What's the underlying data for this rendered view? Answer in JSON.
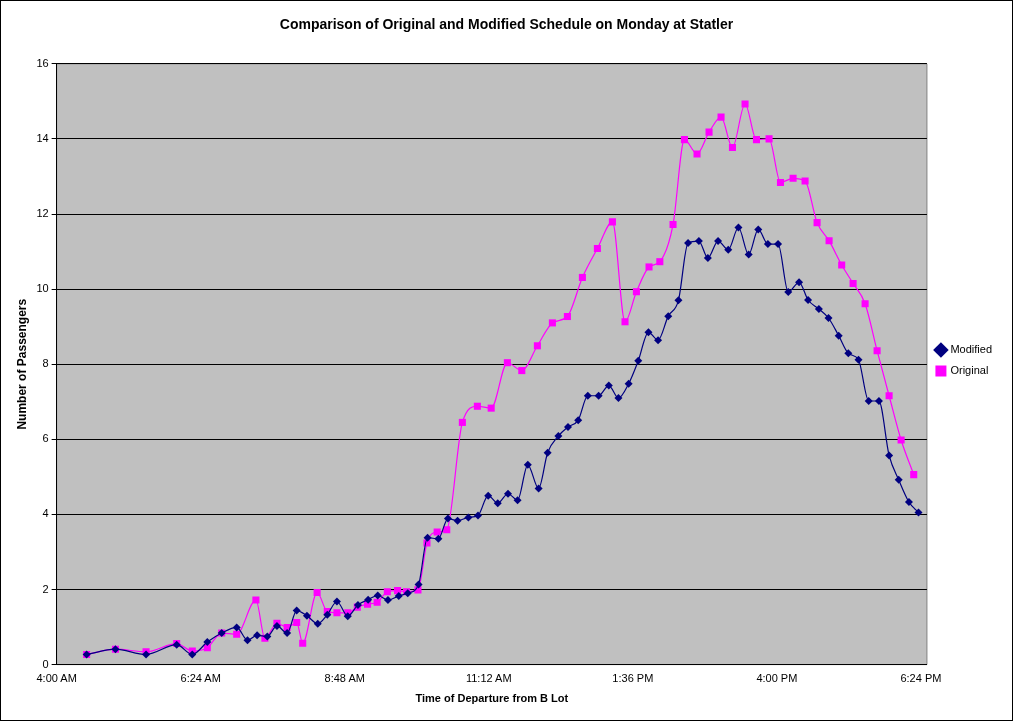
{
  "chart_data": {
    "type": "line",
    "title": "Comparison of Original and Modified Schedule on Monday at Statler",
    "xlabel": "Time of Departure from B Lot",
    "ylabel": "Number of Passengers",
    "xlim": [
      4,
      18.5
    ],
    "xticks": [
      {
        "value": 4,
        "label": "4:00 AM"
      },
      {
        "value": 6.4,
        "label": "6:24 AM"
      },
      {
        "value": 8.8,
        "label": "8:48 AM"
      },
      {
        "value": 11.2,
        "label": "11:12 AM"
      },
      {
        "value": 13.6,
        "label": "1:36 PM"
      },
      {
        "value": 16,
        "label": "4:00 PM"
      },
      {
        "value": 18.4,
        "label": "6:24 PM"
      }
    ],
    "ylim": [
      0,
      16
    ],
    "yticks": [
      0,
      2,
      4,
      6,
      8,
      10,
      12,
      14,
      16
    ],
    "grid": "y",
    "legend": "right",
    "series": [
      {
        "name": "Modified",
        "color": "#000080",
        "marker": "diamond",
        "x": [
          4.5,
          4.98,
          5.49,
          6.0,
          6.26,
          6.51,
          6.75,
          7.0,
          7.18,
          7.34,
          7.51,
          7.67,
          7.84,
          8.0,
          8.17,
          8.35,
          8.51,
          8.67,
          8.85,
          9.02,
          9.19,
          9.35,
          9.52,
          9.7,
          9.85,
          10.03,
          10.18,
          10.36,
          10.52,
          10.68,
          10.86,
          11.02,
          11.19,
          11.35,
          11.52,
          11.68,
          11.85,
          12.03,
          12.18,
          12.36,
          12.52,
          12.69,
          12.85,
          13.03,
          13.2,
          13.36,
          13.53,
          13.69,
          13.86,
          14.02,
          14.19,
          14.36,
          14.52,
          14.7,
          14.85,
          15.02,
          15.19,
          15.36,
          15.53,
          15.69,
          15.85,
          16.02,
          16.19,
          16.37,
          16.52,
          16.7,
          16.86,
          17.03,
          17.19,
          17.36,
          17.53,
          17.7,
          17.87,
          18.03,
          18.2,
          18.36
        ],
        "values": [
          0.27,
          0.41,
          0.27,
          0.53,
          0.27,
          0.6,
          0.84,
          0.99,
          0.65,
          0.78,
          0.75,
          1.03,
          0.84,
          1.44,
          1.3,
          1.09,
          1.33,
          1.68,
          1.29,
          1.59,
          1.73,
          1.84,
          1.72,
          1.83,
          1.9,
          2.13,
          3.38,
          3.35,
          3.89,
          3.83,
          3.92,
          3.97,
          4.5,
          4.3,
          4.55,
          4.38,
          5.32,
          4.69,
          5.64,
          6.09,
          6.33,
          6.51,
          7.16,
          7.16,
          7.43,
          7.1,
          7.48,
          8.09,
          8.85,
          8.64,
          9.28,
          9.7,
          11.23,
          11.28,
          10.83,
          11.28,
          11.05,
          11.64,
          10.92,
          11.59,
          11.2,
          11.2,
          9.92,
          10.18,
          9.71,
          9.47,
          9.23,
          8.76,
          8.29,
          8.12,
          7.02,
          7.02,
          5.57,
          4.92,
          4.33,
          4.05
        ]
      },
      {
        "name": "Original",
        "color": "#ff00ff",
        "marker": "square",
        "x": [
          4.5,
          4.98,
          5.49,
          6.0,
          6.26,
          6.51,
          6.75,
          7.0,
          7.32,
          7.47,
          7.67,
          7.84,
          8.0,
          8.1,
          8.34,
          8.51,
          8.67,
          8.85,
          9.01,
          9.18,
          9.34,
          9.51,
          9.68,
          9.83,
          10.02,
          10.17,
          10.34,
          10.5,
          10.76,
          11.01,
          11.24,
          11.51,
          11.75,
          12.01,
          12.26,
          12.51,
          12.76,
          13.01,
          13.26,
          13.47,
          13.66,
          13.87,
          14.05,
          14.27,
          14.46,
          14.67,
          14.87,
          15.07,
          15.26,
          15.47,
          15.66,
          15.87,
          16.06,
          16.27,
          16.47,
          16.67,
          16.87,
          17.08,
          17.27,
          17.47,
          17.67,
          17.87,
          18.07,
          18.28
        ],
        "values": [
          0.27,
          0.41,
          0.34,
          0.56,
          0.36,
          0.45,
          0.84,
          0.81,
          1.72,
          0.7,
          1.1,
          0.99,
          1.12,
          0.57,
          1.92,
          1.41,
          1.38,
          1.38,
          1.53,
          1.61,
          1.66,
          1.94,
          1.97,
          1.94,
          1.99,
          3.24,
          3.53,
          3.59,
          6.45,
          6.88,
          6.83,
          8.04,
          7.83,
          8.49,
          9.1,
          9.27,
          10.31,
          11.08,
          11.79,
          9.13,
          9.93,
          10.59,
          10.73,
          11.72,
          13.98,
          13.6,
          14.18,
          14.58,
          13.77,
          14.93,
          13.98,
          14.0,
          12.84,
          12.95,
          12.88,
          11.77,
          11.29,
          10.64,
          10.15,
          9.61,
          8.36,
          7.16,
          5.98,
          5.06
        ]
      }
    ]
  }
}
